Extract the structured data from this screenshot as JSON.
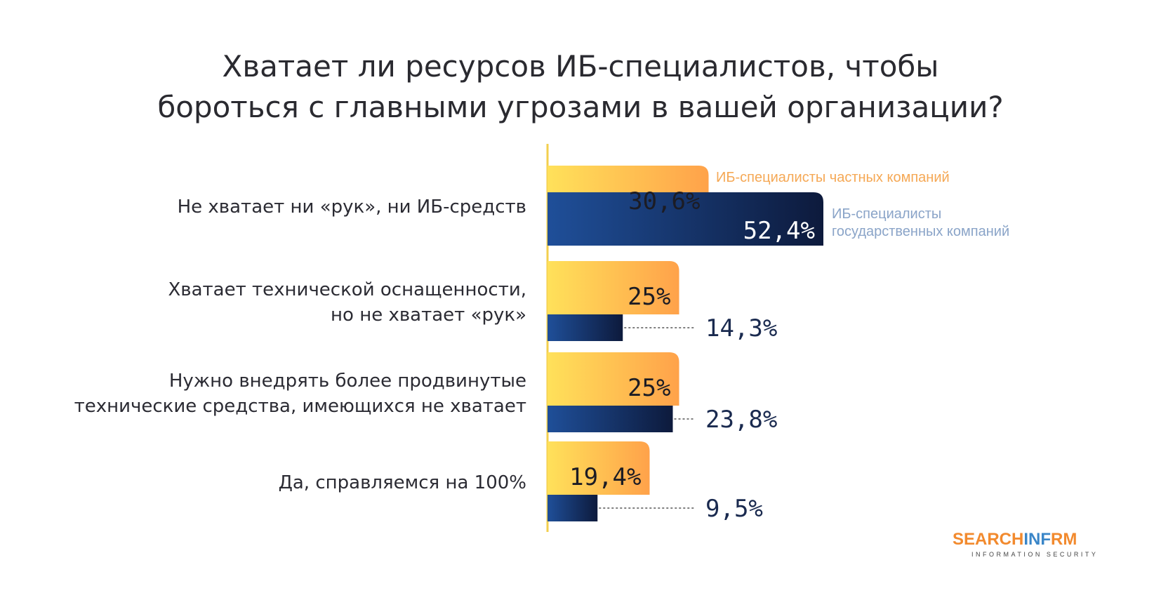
{
  "title_lines": [
    "Хватает ли ресурсов ИБ-специалистов, чтобы",
    "бороться с главными угрозами в вашей организации?"
  ],
  "chart_data": {
    "type": "bar",
    "orientation": "horizontal",
    "title": "Хватает ли ресурсов ИБ-специалистов, чтобы бороться с главными угрозами в вашей организации?",
    "categories": [
      [
        "Не хватает ни «рук», ни ИБ-средств"
      ],
      [
        "Хватает технической оснащенности,",
        "но не хватает «рук»"
      ],
      [
        "Нужно внедрять более продвинутые",
        "технические средства, имеющихся не хватает"
      ],
      [
        "Да, справляемся на 100%"
      ]
    ],
    "series": [
      {
        "name": "ИБ-специалисты частных компаний",
        "values": [
          30.6,
          25,
          25,
          19.4
        ],
        "labels": [
          "30,6%",
          "25%",
          "25%",
          "19,4%"
        ],
        "color_start": "#ffe15a",
        "color_end": "#ffa24a"
      },
      {
        "name": "ИБ-специалисты государственных компаний",
        "name_lines": [
          "ИБ-специалисты",
          "государственных компаний"
        ],
        "values": [
          52.4,
          14.3,
          23.8,
          9.5
        ],
        "labels": [
          "52,4%",
          "14,3%",
          "23,8%",
          "9,5%"
        ],
        "color_start": "#1f4f99",
        "color_end": "#0d1a3c"
      }
    ],
    "xlim": [
      0,
      100
    ],
    "grid": false,
    "legend": "inline, right of the first category bars"
  },
  "colors": {
    "title": "#2a2a30",
    "private_legend": "#f5a855",
    "government_legend": "#8aa4c8",
    "value_dark": "#1a2a4f",
    "axis": "#f3cf4e"
  },
  "logo": {
    "part1": "SEARCH",
    "part2": "INF",
    "part3": "RM",
    "subtitle": "INFORMATION SECURITY",
    "color_main": "#f28a2e",
    "color_accent": "#3a86c8"
  }
}
